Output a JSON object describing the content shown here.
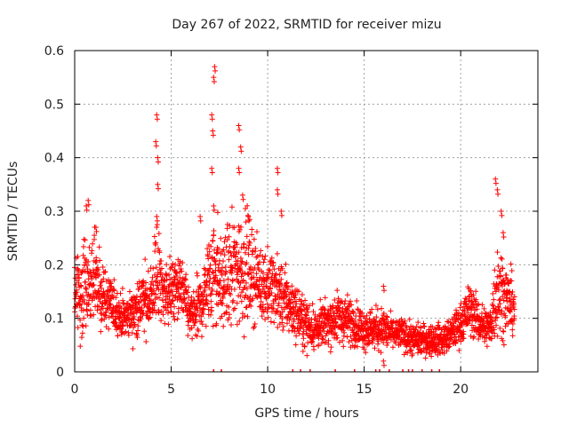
{
  "chart_data": {
    "type": "scatter",
    "title": "Day 267 of 2022, SRMTID for receiver mizu",
    "xlabel": "GPS time / hours",
    "ylabel": "SRMTID / TECUs",
    "xlim": [
      0,
      24
    ],
    "ylim": [
      0,
      0.6
    ],
    "x_ticks": [
      0,
      5,
      10,
      15,
      20
    ],
    "y_ticks": [
      0,
      0.1,
      0.2,
      0.3,
      0.4,
      0.5,
      0.6
    ],
    "x_tick_labels": [
      "0",
      "5",
      "10",
      "15",
      "20"
    ],
    "y_tick_labels": [
      "0",
      "0.1",
      "0.2",
      "0.3",
      "0.4",
      "0.5",
      "0.6"
    ],
    "grid": true,
    "marker": "+",
    "series_color": "#ff0000",
    "envelope": {
      "x": [
        0,
        0.5,
        1.0,
        1.5,
        2.0,
        2.5,
        3.0,
        3.5,
        4.0,
        4.3,
        4.5,
        5.0,
        5.5,
        6.0,
        6.5,
        7.0,
        7.3,
        7.6,
        8.0,
        8.5,
        9.0,
        9.5,
        10.0,
        10.5,
        11.0,
        11.5,
        12.0,
        12.5,
        13.0,
        13.5,
        14.0,
        14.5,
        15.0,
        15.5,
        16.0,
        16.5,
        17.0,
        17.5,
        18.0,
        18.5,
        19.0,
        19.5,
        20.0,
        20.5,
        21.0,
        21.5,
        21.9,
        22.3,
        22.8
      ],
      "center": [
        0.14,
        0.15,
        0.17,
        0.14,
        0.12,
        0.1,
        0.11,
        0.13,
        0.14,
        0.2,
        0.15,
        0.15,
        0.16,
        0.1,
        0.12,
        0.18,
        0.2,
        0.16,
        0.18,
        0.2,
        0.19,
        0.17,
        0.16,
        0.15,
        0.13,
        0.11,
        0.09,
        0.08,
        0.09,
        0.1,
        0.1,
        0.09,
        0.08,
        0.08,
        0.08,
        0.07,
        0.07,
        0.06,
        0.06,
        0.06,
        0.06,
        0.07,
        0.09,
        0.12,
        0.09,
        0.08,
        0.16,
        0.14,
        0.12
      ],
      "spread": [
        0.07,
        0.1,
        0.09,
        0.06,
        0.05,
        0.04,
        0.05,
        0.06,
        0.07,
        0.12,
        0.06,
        0.06,
        0.06,
        0.05,
        0.06,
        0.1,
        0.14,
        0.07,
        0.1,
        0.12,
        0.1,
        0.07,
        0.07,
        0.07,
        0.06,
        0.05,
        0.05,
        0.04,
        0.04,
        0.05,
        0.05,
        0.04,
        0.04,
        0.04,
        0.04,
        0.03,
        0.03,
        0.03,
        0.03,
        0.03,
        0.03,
        0.03,
        0.04,
        0.05,
        0.04,
        0.04,
        0.1,
        0.07,
        0.05
      ]
    },
    "peaks": [
      {
        "x": 0.6,
        "y": 0.31
      },
      {
        "x": 0.7,
        "y": 0.32
      },
      {
        "x": 1.1,
        "y": 0.27
      },
      {
        "x": 4.2,
        "y": 0.43
      },
      {
        "x": 4.25,
        "y": 0.48
      },
      {
        "x": 4.3,
        "y": 0.4
      },
      {
        "x": 4.3,
        "y": 0.35
      },
      {
        "x": 4.25,
        "y": 0.29
      },
      {
        "x": 6.5,
        "y": 0.29
      },
      {
        "x": 7.1,
        "y": 0.48
      },
      {
        "x": 7.2,
        "y": 0.55
      },
      {
        "x": 7.25,
        "y": 0.57
      },
      {
        "x": 7.15,
        "y": 0.45
      },
      {
        "x": 7.1,
        "y": 0.38
      },
      {
        "x": 7.2,
        "y": 0.31
      },
      {
        "x": 8.5,
        "y": 0.46
      },
      {
        "x": 8.6,
        "y": 0.42
      },
      {
        "x": 8.5,
        "y": 0.38
      },
      {
        "x": 8.7,
        "y": 0.33
      },
      {
        "x": 9.0,
        "y": 0.29
      },
      {
        "x": 10.5,
        "y": 0.38
      },
      {
        "x": 10.5,
        "y": 0.34
      },
      {
        "x": 10.7,
        "y": 0.3
      },
      {
        "x": 21.8,
        "y": 0.36
      },
      {
        "x": 21.9,
        "y": 0.34
      },
      {
        "x": 22.1,
        "y": 0.3
      },
      {
        "x": 22.2,
        "y": 0.26
      },
      {
        "x": 16.0,
        "y": 0.16
      },
      {
        "x": 16.0,
        "y": 0.02
      }
    ],
    "zero_markers_x": [
      7.2,
      7.6,
      11.3,
      11.7,
      12.2,
      13.5,
      14.5,
      15.6,
      15.8,
      16.3,
      17.0,
      17.3,
      17.5,
      18.0,
      18.5,
      18.9
    ]
  }
}
